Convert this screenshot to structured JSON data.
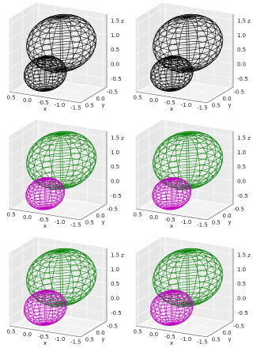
{
  "chart_data": [
    {
      "type": "wireframe3d",
      "xlabel": "x",
      "ylabel": "y",
      "zlabel": "z",
      "xlim": [
        -1.6,
        0.6
      ],
      "ylim": [
        -0.6,
        0.6
      ],
      "zlim": [
        -0.8,
        1.7
      ],
      "xticks": [
        0.5,
        {
          "value": 0,
          "label": "0.0"
        },
        -0.5,
        {
          "value": -1,
          "label": "-1.0"
        },
        -1.5
      ],
      "yticks": [
        0.5,
        {
          "value": 0,
          "label": "0.0"
        },
        -0.5
      ],
      "zticks": [
        1.5,
        {
          "value": 1,
          "label": "1.0"
        },
        0.5,
        {
          "value": 0,
          "label": "0.0"
        },
        -0.5
      ],
      "series": [
        {
          "color": "#000000",
          "center": [
            -0.6,
            0,
            0.8
          ],
          "radius": 0.9
        },
        {
          "color": "#000000",
          "center": [
            0.1,
            -0.3,
            -0.5
          ],
          "radius": 0.55
        }
      ]
    },
    {
      "type": "wireframe3d",
      "xlabel": "x",
      "ylabel": "y",
      "zlabel": "z",
      "xlim": [
        -1.6,
        0.6
      ],
      "ylim": [
        -0.6,
        0.6
      ],
      "zlim": [
        -0.8,
        1.7
      ],
      "xticks": [
        0.5,
        {
          "value": 0,
          "label": "0.0"
        },
        -0.5,
        {
          "value": -1,
          "label": "-1.0"
        },
        -1.5
      ],
      "yticks": [
        0.5,
        {
          "value": 0,
          "label": "0.0"
        },
        -0.5
      ],
      "zticks": [
        1.5,
        {
          "value": 1,
          "label": "1.0"
        },
        0.5,
        {
          "value": 0,
          "label": "0.0"
        },
        -0.5
      ],
      "series": [
        {
          "color": "#000000",
          "center": [
            -0.6,
            0,
            0.8
          ],
          "radius": 0.9
        },
        {
          "color": "#000000",
          "center": [
            0.1,
            -0.3,
            -0.5
          ],
          "radius": 0.55
        }
      ]
    },
    {
      "type": "wireframe3d",
      "xlabel": "x",
      "ylabel": "y",
      "zlabel": "z",
      "xlim": [
        -1.6,
        0.6
      ],
      "ylim": [
        -0.6,
        0.6
      ],
      "zlim": [
        -0.8,
        1.7
      ],
      "xticks": [
        0.5,
        {
          "value": 0,
          "label": "0.0"
        },
        -0.5,
        {
          "value": -1,
          "label": "-1.0"
        },
        -1.5
      ],
      "yticks": [
        0.5,
        {
          "value": 0,
          "label": "0.0"
        },
        -0.5
      ],
      "zticks": [
        1.5,
        {
          "value": 1,
          "label": "1.0"
        },
        0.5,
        {
          "value": 0,
          "label": "0.0"
        },
        -0.5
      ],
      "series": [
        {
          "color": "#008000",
          "center": [
            -0.6,
            0,
            0.8
          ],
          "radius": 0.9
        },
        {
          "color": "#bf00bf",
          "center": [
            0.1,
            -0.3,
            -0.6
          ],
          "radius": 0.5
        }
      ]
    },
    {
      "type": "wireframe3d",
      "xlabel": "x",
      "ylabel": "y",
      "zlabel": "z",
      "xlim": [
        -1.6,
        0.6
      ],
      "ylim": [
        -0.6,
        0.6
      ],
      "zlim": [
        -0.8,
        1.7
      ],
      "xticks": [
        0.5,
        {
          "value": 0,
          "label": "0.0"
        },
        -0.5,
        {
          "value": -1,
          "label": "-1.0"
        },
        -1.5
      ],
      "yticks": [
        0.5,
        {
          "value": 0,
          "label": "0.0"
        },
        -0.5
      ],
      "zticks": [
        1.5,
        {
          "value": 1,
          "label": "1.0"
        },
        0.5,
        {
          "value": 0,
          "label": "0.0"
        },
        -0.5
      ],
      "series": [
        {
          "color": "#008000",
          "center": [
            -0.6,
            0,
            0.8
          ],
          "radius": 0.9
        },
        {
          "color": "#bf00bf",
          "center": [
            0.1,
            -0.3,
            -0.6
          ],
          "radius": 0.5
        }
      ]
    },
    {
      "type": "wireframe3d",
      "xlabel": "x",
      "ylabel": "y",
      "zlabel": "z",
      "xlim": [
        -1.6,
        0.6
      ],
      "ylim": [
        -0.6,
        0.6
      ],
      "zlim": [
        -0.8,
        1.7
      ],
      "xticks": [
        0.5,
        {
          "value": 0,
          "label": "0.0"
        },
        -0.5,
        {
          "value": -1,
          "label": "-1.0"
        },
        -1.5
      ],
      "yticks": [
        0.5,
        {
          "value": 0,
          "label": "0.0"
        },
        -0.5
      ],
      "zticks": [
        1.5,
        {
          "value": 1,
          "label": "1.0"
        },
        0.5,
        {
          "value": 0,
          "label": "0.0"
        },
        -0.5
      ],
      "series": [
        {
          "color": "#008000",
          "center": [
            -0.6,
            0,
            0.8
          ],
          "radius": 0.9
        },
        {
          "color": "#bf00bf",
          "center": [
            0.1,
            -0.3,
            -0.5
          ],
          "radius": 0.55
        }
      ]
    },
    {
      "type": "wireframe3d",
      "xlabel": "x",
      "ylabel": "y",
      "zlabel": "z",
      "xlim": [
        -1.6,
        0.6
      ],
      "ylim": [
        -0.6,
        0.6
      ],
      "zlim": [
        -0.8,
        1.7
      ],
      "xticks": [
        0.5,
        {
          "value": 0,
          "label": "0.0"
        },
        -0.5,
        {
          "value": -1,
          "label": "-1.0"
        },
        -1.5
      ],
      "yticks": [
        0.5,
        {
          "value": 0,
          "label": "0.0"
        },
        -0.5
      ],
      "zticks": [
        1.5,
        {
          "value": 1,
          "label": "1.0"
        },
        0.5,
        {
          "value": 0,
          "label": "0.0"
        },
        -0.5
      ],
      "series": [
        {
          "color": "#008000",
          "center": [
            -0.6,
            0,
            0.8
          ],
          "radius": 0.9
        },
        {
          "color": "#bf00bf",
          "center": [
            0.1,
            -0.3,
            -0.5
          ],
          "radius": 0.55
        }
      ]
    }
  ]
}
